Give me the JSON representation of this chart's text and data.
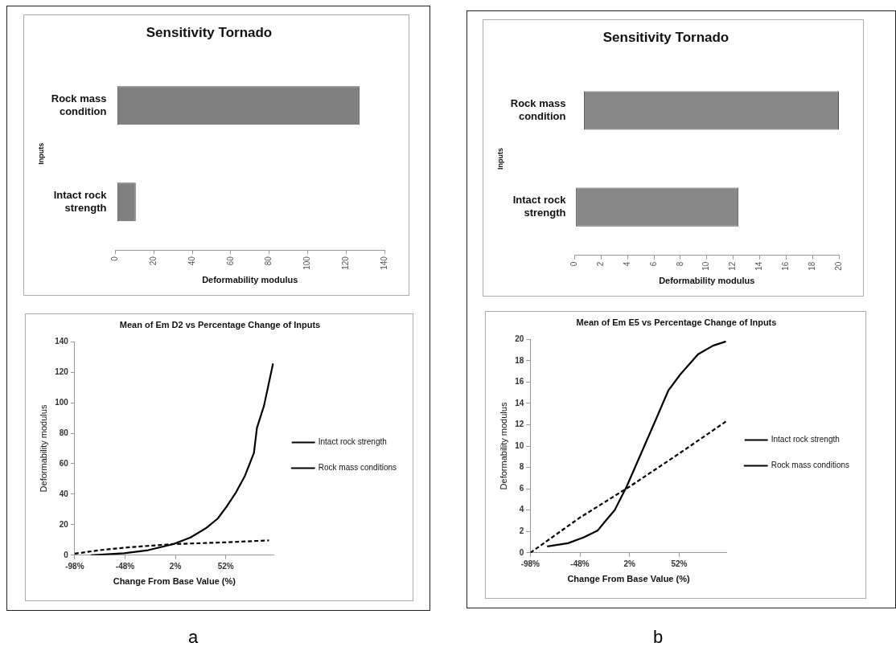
{
  "chart_data": [
    {
      "type": "bar",
      "orientation": "horizontal",
      "title": "Sensitivity Tornado",
      "xlabel": "Deformability modulus",
      "ylabel": "Inputs",
      "categories": [
        "Rock mass condition",
        "Intact rock strength"
      ],
      "base": [
        1,
        1
      ],
      "values": [
        126,
        9.6
      ],
      "color": "#808080",
      "xlim": [
        0,
        140
      ],
      "xticks": [
        0,
        20,
        40,
        60,
        80,
        100,
        120,
        140
      ],
      "grid": false,
      "legend": false
    },
    {
      "type": "bar",
      "orientation": "horizontal",
      "title": "Sensitivity Tornado",
      "xlabel": "Deformability modulus",
      "ylabel": "Inputs",
      "categories": [
        "Rock mass condition",
        "Intact rock strength"
      ],
      "base": [
        0.7,
        0.1
      ],
      "values": [
        19.3,
        12.3
      ],
      "color": "#888888",
      "xlim": [
        0,
        20
      ],
      "xticks": [
        0,
        2,
        4,
        6,
        8,
        10,
        12,
        14,
        16,
        18,
        20
      ],
      "grid": false,
      "legend": false
    },
    {
      "type": "line",
      "title": "Mean of Em D2 vs Percentage Change of Inputs",
      "xlabel": "Change From Base Value (%)",
      "ylabel": "Deformability modulus",
      "xlim": [
        -98,
        100
      ],
      "xticks": [
        {
          "value": -98,
          "label": "-98%"
        },
        {
          "value": -48,
          "label": "-48%"
        },
        {
          "value": 2,
          "label": "2%"
        },
        {
          "value": 52,
          "label": "52%"
        }
      ],
      "ylim": [
        0,
        140
      ],
      "yticks": [
        0,
        20,
        40,
        60,
        80,
        100,
        120,
        140
      ],
      "grid": false,
      "legend": "right",
      "marker": "none",
      "annotations": [
        "a"
      ],
      "series": [
        {
          "name": "Intact rock strength",
          "color": "#000000",
          "line_style": "dashed",
          "x": [
            -98,
            -73,
            -46,
            0,
            50,
            95
          ],
          "values": [
            1,
            3.3,
            5.1,
            7.3,
            8.4,
            9.7
          ]
        },
        {
          "name": "Rock mass conditions",
          "color": "#000000",
          "line_style": "solid",
          "x": [
            -82,
            -49,
            -25,
            0,
            17,
            33,
            44,
            53,
            62,
            71,
            80,
            83,
            90,
            99
          ],
          "values": [
            0,
            1.3,
            3.3,
            7.3,
            11.6,
            18,
            24,
            32,
            41,
            52,
            67,
            83.5,
            98,
            125.7
          ]
        }
      ]
    },
    {
      "type": "line",
      "title": "Mean of Em E5 vs Percentage Change of Inputs",
      "xlabel": "Change From Base Value (%)",
      "ylabel": "Deformability modulus",
      "xlim": [
        -98,
        100
      ],
      "xticks": [
        {
          "value": -98,
          "label": "-98%"
        },
        {
          "value": -48,
          "label": "-48%"
        },
        {
          "value": 2,
          "label": "2%"
        },
        {
          "value": 52,
          "label": "52%"
        }
      ],
      "ylim": [
        0,
        20
      ],
      "yticks": [
        0,
        2,
        4,
        6,
        8,
        10,
        12,
        14,
        16,
        18,
        20
      ],
      "grid": false,
      "legend": "right",
      "marker": "none",
      "annotations": [
        "b"
      ],
      "series": [
        {
          "name": "Intact rock strength",
          "color": "#000000",
          "line_style": "dashed",
          "x": [
            -98,
            -48,
            2,
            52,
            99
          ],
          "values": [
            0,
            3.3,
            6.2,
            9.3,
            12.3
          ]
        },
        {
          "name": "Rock mass conditions",
          "color": "#000000",
          "line_style": "solid",
          "x": [
            -81,
            -60,
            -44,
            -30,
            -23,
            -13,
            -1,
            14,
            29,
            41,
            53,
            71,
            86,
            99
          ],
          "values": [
            0.6,
            0.9,
            1.45,
            2.1,
            2.9,
            4,
            6.2,
            9.4,
            12.6,
            15.2,
            16.7,
            18.6,
            19.4,
            19.8
          ]
        }
      ]
    }
  ]
}
